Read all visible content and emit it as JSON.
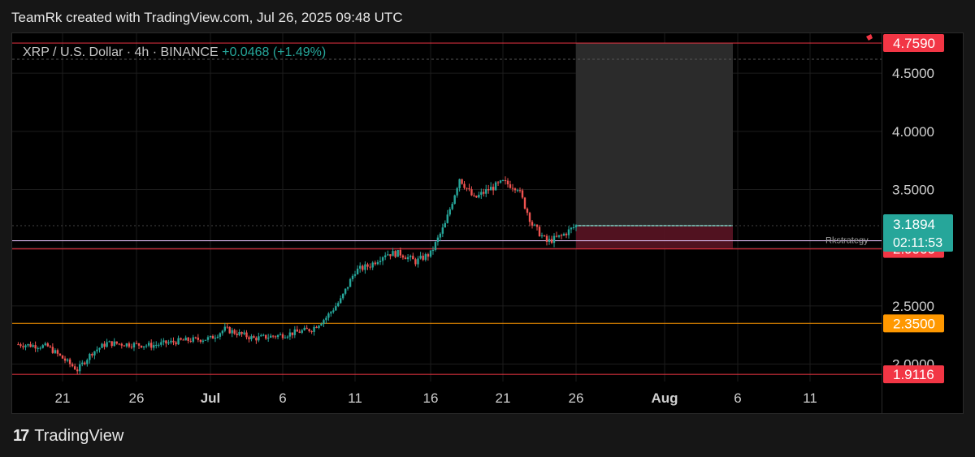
{
  "header": {
    "credit": "TeamRk created with TradingView.com, Jul 26, 2025 09:48 UTC"
  },
  "symbol": {
    "pair": "XRP / U.S. Dollar · 4h · BINANCE",
    "change": "+0.0468 (+1.49%)"
  },
  "footer": {
    "brand": "TradingView",
    "logo": "17"
  },
  "chart_data": {
    "type": "candlestick",
    "x_ticks": [
      "21",
      "26",
      "Jul",
      "6",
      "11",
      "16",
      "21",
      "26",
      "Aug",
      "6",
      "11"
    ],
    "y_ticks": [
      "2.0000",
      "2.5000",
      "3.0000",
      "3.5000",
      "4.0000",
      "4.5000"
    ],
    "ylim": [
      1.9,
      4.85
    ],
    "current_price": "3.1894",
    "countdown": "02:11:53",
    "levels": [
      {
        "value": 4.759,
        "label": "4.7590",
        "color": "#f23645"
      },
      {
        "value": 2.99,
        "label": "2.9900",
        "color": "#f23645"
      },
      {
        "value": 2.35,
        "label": "2.3500",
        "color": "#ff9800"
      },
      {
        "value": 1.9116,
        "label": "1.9116",
        "color": "#f23645"
      }
    ],
    "indicator_label": "Rkstrategy",
    "position": {
      "entry": 3.1894,
      "stop": 2.99,
      "target": 4.759
    },
    "path": [
      [
        "Jun 18",
        2.17
      ],
      [
        "Jun 20",
        2.15
      ],
      [
        "Jun 22",
        1.95
      ],
      [
        "Jun 23",
        2.1
      ],
      [
        "Jun 24",
        2.18
      ],
      [
        "Jun 27",
        2.16
      ],
      [
        "Jun 29",
        2.2
      ],
      [
        "Jul 1",
        2.22
      ],
      [
        "Jul 2",
        2.3
      ],
      [
        "Jul 4",
        2.22
      ],
      [
        "Jul 6",
        2.25
      ],
      [
        "Jul 8",
        2.3
      ],
      [
        "Jul 9",
        2.4
      ],
      [
        "Jul 10",
        2.55
      ],
      [
        "Jul 11",
        2.8
      ],
      [
        "Jul 12",
        2.85
      ],
      [
        "Jul 13",
        2.95
      ],
      [
        "Jul 14",
        2.95
      ],
      [
        "Jul 15",
        2.88
      ],
      [
        "Jul 16",
        2.95
      ],
      [
        "Jul 17",
        3.2
      ],
      [
        "Jul 18",
        3.6
      ],
      [
        "Jul 19",
        3.42
      ],
      [
        "Jul 20",
        3.5
      ],
      [
        "Jul 21",
        3.56
      ],
      [
        "Jul 22",
        3.52
      ],
      [
        "Jul 23",
        3.2
      ],
      [
        "Jul 24",
        3.05
      ],
      [
        "Jul 25",
        3.1
      ],
      [
        "Jul 26",
        3.19
      ]
    ]
  }
}
